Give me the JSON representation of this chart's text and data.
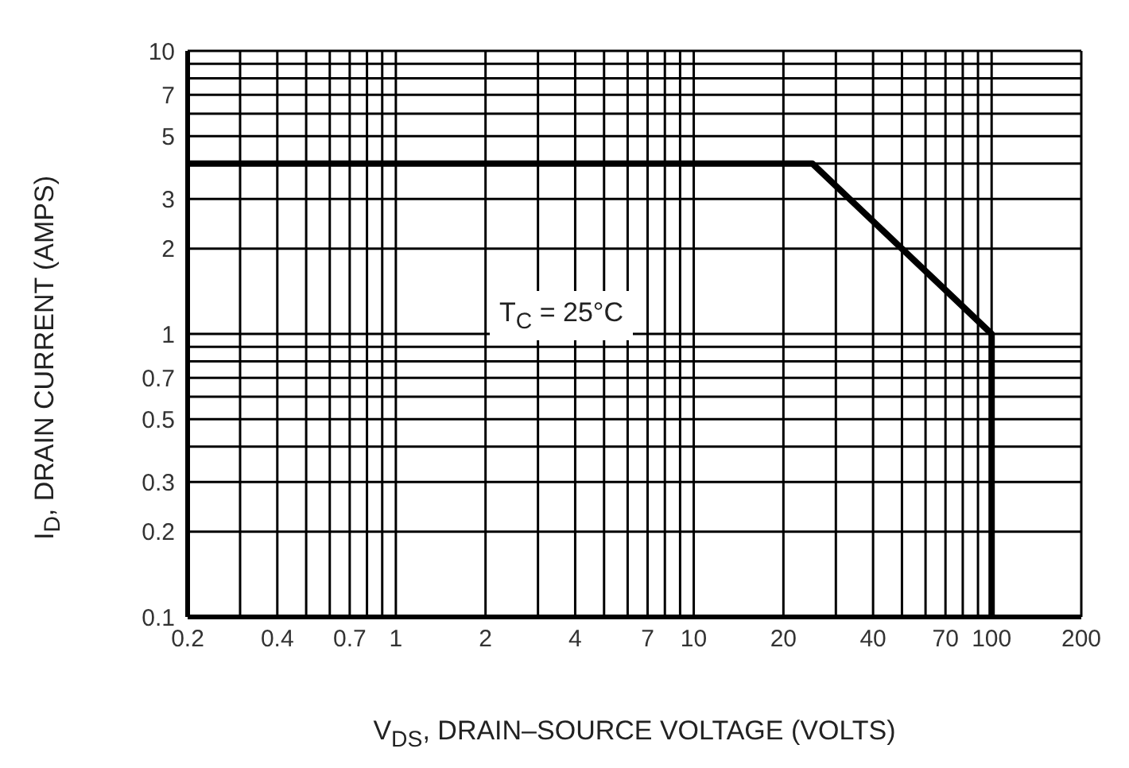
{
  "chart_data": {
    "type": "line",
    "xlabel": "V$_{DS}$, DRAIN–SOURCE VOLTAGE (VOLTS)",
    "ylabel": "I$_{D}$, DRAIN CURRENT (AMPS)",
    "annotations": [
      "T$_{C}$ = 25°C"
    ],
    "x": [
      0.2,
      25,
      100,
      100
    ],
    "series": [
      {
        "color": "#000000",
        "values": [
          4,
          4,
          1,
          0.1
        ]
      }
    ],
    "log": "xy",
    "xlim": [
      0.2,
      200
    ],
    "ylim": [
      0.1,
      10
    ],
    "xticks": [
      0.2,
      {
        "value": 0.3,
        "label": null
      },
      0.4,
      {
        "value": 0.5,
        "label": null
      },
      {
        "value": 0.6,
        "label": null
      },
      0.7,
      {
        "value": 0.8,
        "label": null
      },
      {
        "value": 0.9,
        "label": null
      },
      1,
      2,
      {
        "value": 3,
        "label": null
      },
      4,
      {
        "value": 5,
        "label": null
      },
      {
        "value": 6,
        "label": null
      },
      7,
      {
        "value": 8,
        "label": null
      },
      {
        "value": 9,
        "label": null
      },
      10,
      20,
      {
        "value": 30,
        "label": null
      },
      40,
      {
        "value": 50,
        "label": null
      },
      {
        "value": 60,
        "label": null
      },
      70,
      {
        "value": 80,
        "label": null
      },
      {
        "value": 90,
        "label": null
      },
      100,
      200
    ],
    "yticks": [
      0.1,
      0.2,
      0.3,
      {
        "value": 0.4,
        "label": null
      },
      0.5,
      {
        "value": 0.6,
        "label": null
      },
      0.7,
      {
        "value": 0.8,
        "label": null
      },
      {
        "value": 0.9,
        "label": null
      },
      1,
      2,
      3,
      {
        "value": 4,
        "label": null
      },
      5,
      {
        "value": 6,
        "label": null
      },
      7,
      {
        "value": 8,
        "label": null
      },
      {
        "value": 9,
        "label": null
      },
      10
    ],
    "grid": true,
    "marker": "none",
    "line_style": "solid"
  }
}
